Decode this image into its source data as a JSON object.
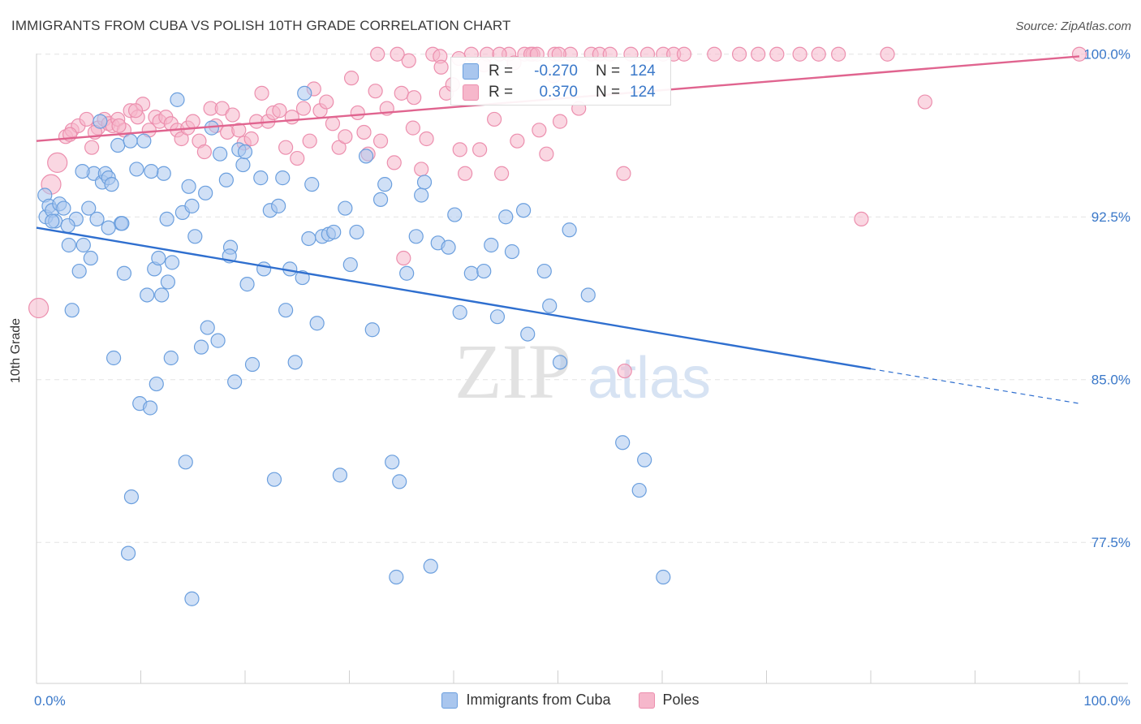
{
  "title": "IMMIGRANTS FROM CUBA VS POLISH 10TH GRADE CORRELATION CHART",
  "source": "Source: ZipAtlas.com",
  "watermark": {
    "zip": "ZIP",
    "atlas": "atlas"
  },
  "colors": {
    "blue_fill": "#a9c6ee",
    "blue_stroke": "#6b9fde",
    "blue_line": "#2f6fcf",
    "pink_fill": "#f6b7cb",
    "pink_stroke": "#ec8fae",
    "pink_line": "#e0648f",
    "tick_label": "#3a78c9",
    "grid": "#e4e4e4"
  },
  "stats": [
    {
      "r_label": "R =",
      "r_value": "-0.270",
      "n_label": "N =",
      "n_value": "124"
    },
    {
      "r_label": "R =",
      "r_value": "0.370",
      "n_label": "N =",
      "n_value": "124"
    }
  ],
  "chart_data": {
    "type": "scatter",
    "title": "IMMIGRANTS FROM CUBA VS POLISH 10TH GRADE CORRELATION CHART",
    "xlabel": "",
    "ylabel": "10th Grade",
    "xlim": [
      0,
      100
    ],
    "ylim": [
      71,
      101
    ],
    "x_tick_labels": [
      "0.0%",
      "100.0%"
    ],
    "y_ticks": [
      77.5,
      85.0,
      92.5,
      100.0
    ],
    "y_tick_labels": [
      "77.5%",
      "85.0%",
      "92.5%",
      "100.0%"
    ],
    "grid": true,
    "legend_position": "bottom",
    "series": [
      {
        "name": "Immigrants from Cuba",
        "color": "#a9c6ee",
        "trend": {
          "x0": 0,
          "y0": 92.0,
          "x1": 80,
          "y1": 85.5,
          "dashed_to_x": 100,
          "dashed_to_y": 83.9
        },
        "points": [
          [
            0.8,
            93.5
          ],
          [
            0.9,
            92.5
          ],
          [
            1.2,
            93.0
          ],
          [
            1.5,
            92.8
          ],
          [
            1.8,
            92.3
          ],
          [
            2.2,
            93.1
          ],
          [
            2.6,
            92.9
          ],
          [
            3.1,
            91.2
          ],
          [
            3.4,
            88.2
          ],
          [
            3.8,
            92.4
          ],
          [
            4.1,
            90.0
          ],
          [
            4.5,
            91.2
          ],
          [
            5.0,
            92.9
          ],
          [
            5.2,
            90.6
          ],
          [
            5.5,
            94.5
          ],
          [
            5.8,
            92.4
          ],
          [
            6.1,
            96.9
          ],
          [
            6.3,
            94.1
          ],
          [
            6.6,
            94.5
          ],
          [
            6.9,
            94.3
          ],
          [
            7.2,
            94.0
          ],
          [
            7.4,
            86.0
          ],
          [
            7.8,
            95.8
          ],
          [
            8.1,
            92.2
          ],
          [
            8.4,
            89.9
          ],
          [
            8.8,
            77.0
          ],
          [
            9.1,
            79.6
          ],
          [
            9.6,
            94.7
          ],
          [
            9.9,
            83.9
          ],
          [
            10.3,
            96.0
          ],
          [
            10.6,
            88.9
          ],
          [
            10.9,
            83.7
          ],
          [
            11.3,
            90.1
          ],
          [
            11.5,
            84.8
          ],
          [
            11.7,
            90.6
          ],
          [
            12.0,
            88.9
          ],
          [
            12.2,
            94.5
          ],
          [
            12.6,
            89.5
          ],
          [
            12.9,
            86.0
          ],
          [
            13.0,
            90.4
          ],
          [
            13.5,
            97.9
          ],
          [
            14.0,
            92.7
          ],
          [
            14.3,
            81.2
          ],
          [
            14.6,
            93.9
          ],
          [
            14.9,
            93.0
          ],
          [
            15.2,
            91.6
          ],
          [
            15.8,
            86.5
          ],
          [
            16.2,
            93.6
          ],
          [
            16.4,
            87.4
          ],
          [
            16.8,
            96.6
          ],
          [
            17.4,
            86.8
          ],
          [
            17.6,
            95.4
          ],
          [
            18.2,
            94.2
          ],
          [
            18.6,
            91.1
          ],
          [
            19.0,
            84.9
          ],
          [
            19.4,
            95.6
          ],
          [
            19.8,
            94.9
          ],
          [
            20.2,
            89.4
          ],
          [
            20.7,
            85.7
          ],
          [
            21.5,
            94.3
          ],
          [
            21.8,
            90.1
          ],
          [
            22.4,
            92.8
          ],
          [
            22.8,
            80.4
          ],
          [
            23.2,
            93.0
          ],
          [
            23.6,
            94.3
          ],
          [
            23.9,
            88.2
          ],
          [
            24.3,
            90.1
          ],
          [
            24.8,
            85.8
          ],
          [
            25.5,
            89.7
          ],
          [
            26.1,
            91.5
          ],
          [
            26.4,
            94.0
          ],
          [
            26.9,
            87.6
          ],
          [
            27.4,
            91.6
          ],
          [
            28.0,
            91.7
          ],
          [
            28.5,
            91.8
          ],
          [
            29.1,
            80.6
          ],
          [
            29.6,
            92.9
          ],
          [
            30.1,
            90.3
          ],
          [
            30.7,
            91.8
          ],
          [
            31.6,
            95.3
          ],
          [
            32.2,
            87.3
          ],
          [
            33.0,
            93.3
          ],
          [
            33.4,
            94.0
          ],
          [
            34.1,
            81.2
          ],
          [
            34.5,
            75.9
          ],
          [
            34.8,
            80.3
          ],
          [
            35.5,
            89.9
          ],
          [
            36.4,
            91.6
          ],
          [
            36.9,
            93.5
          ],
          [
            37.2,
            94.1
          ],
          [
            37.8,
            76.4
          ],
          [
            38.5,
            91.3
          ],
          [
            39.5,
            91.1
          ],
          [
            40.1,
            92.6
          ],
          [
            40.6,
            88.1
          ],
          [
            41.7,
            89.9
          ],
          [
            42.9,
            90.0
          ],
          [
            43.6,
            91.2
          ],
          [
            44.2,
            87.9
          ],
          [
            45.0,
            92.5
          ],
          [
            45.6,
            90.9
          ],
          [
            46.7,
            92.8
          ],
          [
            47.1,
            87.1
          ],
          [
            48.7,
            90.0
          ],
          [
            49.2,
            88.4
          ],
          [
            50.2,
            85.8
          ],
          [
            51.1,
            91.9
          ],
          [
            52.9,
            88.9
          ],
          [
            56.2,
            82.1
          ],
          [
            57.8,
            79.9
          ],
          [
            58.3,
            81.3
          ],
          [
            60.1,
            75.9
          ],
          [
            14.9,
            74.9
          ],
          [
            18.5,
            90.7
          ],
          [
            20.0,
            95.5
          ],
          [
            25.7,
            98.2
          ],
          [
            11.0,
            94.6
          ],
          [
            3.0,
            92.1
          ],
          [
            8.2,
            92.2
          ],
          [
            1.5,
            92.3
          ],
          [
            4.4,
            94.6
          ],
          [
            6.9,
            92.0
          ],
          [
            9.0,
            96.0
          ],
          [
            12.5,
            92.4
          ]
        ]
      },
      {
        "name": "Poles",
        "color": "#f6b7cb",
        "trend": {
          "x0": 0,
          "y0": 96.0,
          "x1": 100,
          "y1": 99.9
        },
        "points": [
          [
            0.2,
            88.3
          ],
          [
            1.4,
            94.0
          ],
          [
            2.0,
            95.0
          ],
          [
            2.8,
            96.2
          ],
          [
            3.4,
            96.5
          ],
          [
            4.0,
            96.7
          ],
          [
            4.8,
            97.0
          ],
          [
            5.3,
            95.7
          ],
          [
            5.9,
            96.6
          ],
          [
            6.5,
            97.0
          ],
          [
            6.9,
            96.8
          ],
          [
            7.3,
            96.7
          ],
          [
            7.8,
            97.0
          ],
          [
            8.4,
            96.5
          ],
          [
            9.0,
            97.4
          ],
          [
            9.7,
            97.1
          ],
          [
            10.2,
            97.7
          ],
          [
            10.8,
            96.5
          ],
          [
            11.4,
            97.1
          ],
          [
            11.8,
            96.9
          ],
          [
            12.4,
            97.1
          ],
          [
            12.9,
            96.8
          ],
          [
            13.5,
            96.5
          ],
          [
            13.9,
            96.1
          ],
          [
            14.5,
            96.6
          ],
          [
            15.0,
            96.9
          ],
          [
            15.6,
            96.0
          ],
          [
            16.1,
            95.5
          ],
          [
            16.7,
            97.5
          ],
          [
            17.2,
            96.7
          ],
          [
            17.8,
            97.5
          ],
          [
            18.3,
            96.4
          ],
          [
            18.8,
            97.2
          ],
          [
            19.4,
            96.5
          ],
          [
            19.9,
            95.9
          ],
          [
            20.6,
            96.1
          ],
          [
            21.1,
            96.9
          ],
          [
            21.6,
            98.2
          ],
          [
            22.2,
            96.9
          ],
          [
            22.7,
            97.3
          ],
          [
            23.3,
            97.4
          ],
          [
            23.9,
            95.7
          ],
          [
            24.5,
            97.1
          ],
          [
            25.0,
            95.2
          ],
          [
            25.6,
            97.5
          ],
          [
            26.2,
            96.0
          ],
          [
            26.6,
            98.4
          ],
          [
            27.2,
            97.4
          ],
          [
            27.8,
            97.8
          ],
          [
            28.4,
            96.8
          ],
          [
            29.0,
            95.7
          ],
          [
            29.6,
            96.2
          ],
          [
            30.2,
            98.9
          ],
          [
            30.8,
            97.3
          ],
          [
            31.4,
            96.4
          ],
          [
            31.8,
            95.4
          ],
          [
            32.5,
            98.3
          ],
          [
            33.0,
            96.0
          ],
          [
            33.6,
            97.5
          ],
          [
            34.3,
            95.0
          ],
          [
            35.0,
            98.2
          ],
          [
            35.7,
            99.7
          ],
          [
            36.1,
            96.6
          ],
          [
            36.9,
            94.7
          ],
          [
            37.4,
            96.1
          ],
          [
            38.0,
            100.0
          ],
          [
            38.7,
            99.9
          ],
          [
            39.3,
            98.2
          ],
          [
            39.9,
            98.6
          ],
          [
            40.6,
            95.6
          ],
          [
            41.1,
            94.5
          ],
          [
            41.7,
            100.0
          ],
          [
            42.5,
            95.6
          ],
          [
            43.2,
            100.0
          ],
          [
            43.9,
            97.0
          ],
          [
            44.6,
            94.5
          ],
          [
            45.3,
            100.0
          ],
          [
            46.1,
            96.0
          ],
          [
            46.8,
            100.0
          ],
          [
            47.6,
            100.0
          ],
          [
            48.2,
            96.5
          ],
          [
            48.9,
            95.4
          ],
          [
            49.7,
            100.0
          ],
          [
            50.2,
            96.9
          ],
          [
            51.2,
            100.0
          ],
          [
            52.0,
            97.5
          ],
          [
            53.2,
            100.0
          ],
          [
            54.0,
            100.0
          ],
          [
            55.0,
            100.0
          ],
          [
            56.3,
            94.5
          ],
          [
            57.0,
            100.0
          ],
          [
            58.6,
            100.0
          ],
          [
            60.1,
            100.0
          ],
          [
            61.1,
            100.0
          ],
          [
            62.1,
            100.0
          ],
          [
            65.0,
            100.0
          ],
          [
            67.4,
            100.0
          ],
          [
            69.2,
            100.0
          ],
          [
            71.0,
            100.0
          ],
          [
            73.2,
            100.0
          ],
          [
            75.0,
            100.0
          ],
          [
            76.9,
            100.0
          ],
          [
            79.1,
            92.4
          ],
          [
            81.6,
            100.0
          ],
          [
            85.2,
            97.8
          ],
          [
            100.0,
            100.0
          ],
          [
            47.4,
            100.0
          ],
          [
            50.1,
            100.0
          ],
          [
            56.4,
            85.4
          ],
          [
            35.2,
            90.6
          ],
          [
            32.7,
            100.0
          ],
          [
            34.6,
            100.0
          ],
          [
            36.2,
            98.0
          ],
          [
            38.8,
            99.4
          ],
          [
            40.5,
            99.8
          ],
          [
            42.9,
            99.5
          ],
          [
            44.4,
            100.0
          ],
          [
            45.8,
            99.6
          ],
          [
            48.0,
            100.0
          ],
          [
            49.6,
            99.0
          ],
          [
            3.2,
            96.3
          ],
          [
            5.6,
            96.4
          ],
          [
            7.9,
            96.7
          ],
          [
            9.5,
            97.4
          ]
        ]
      }
    ]
  }
}
